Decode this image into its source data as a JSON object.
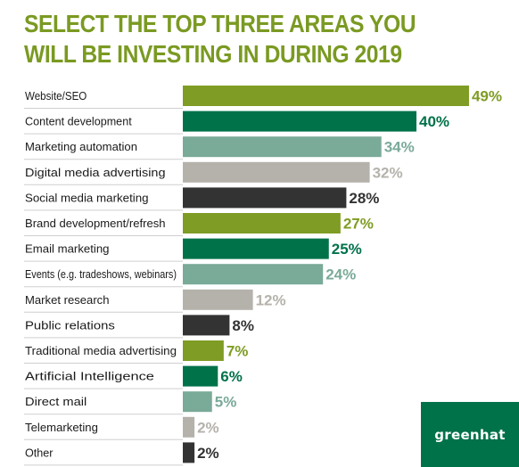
{
  "chart_data": {
    "type": "bar",
    "orientation": "horizontal",
    "title": "SELECT THE TOP THREE AREAS YOU WILL BE INVESTING IN DURING 2019",
    "categories": [
      "Website/SEO",
      "Content development",
      "Marketing automation",
      "Digital media advertising",
      "Social media marketing",
      "Brand development/refresh",
      "Email marketing",
      "Events (e.g. tradeshows, webinars)",
      "Market research",
      "Public relations",
      "Traditional media advertising",
      "Artificial Intelligence",
      "Direct mail",
      "Telemarketing",
      "Other"
    ],
    "values": [
      49,
      40,
      34,
      32,
      28,
      27,
      25,
      24,
      12,
      8,
      7,
      6,
      5,
      2,
      2
    ],
    "value_labels": [
      "49%",
      "40%",
      "34%",
      "32%",
      "28%",
      "27%",
      "25%",
      "24%",
      "12%",
      "8%",
      "7%",
      "6%",
      "5%",
      "2%",
      "2%"
    ],
    "bar_colors": [
      "#7f9c24",
      "#00724a",
      "#7aaa98",
      "#b5b2ab",
      "#333333",
      "#7f9c24",
      "#00724a",
      "#7aaa98",
      "#b5b2ab",
      "#333333",
      "#7f9c24",
      "#00724a",
      "#7aaa98",
      "#b5b2ab",
      "#333333"
    ],
    "xlim": [
      0,
      50
    ],
    "xlabel": "",
    "ylabel": "",
    "grid": false,
    "legend": "none"
  },
  "logo": {
    "text": "greenhat",
    "background": "#00724a"
  },
  "colors": {
    "title": "#7a9a22",
    "label_text": "#1a1a1a",
    "divider": "#cfcfcf"
  }
}
